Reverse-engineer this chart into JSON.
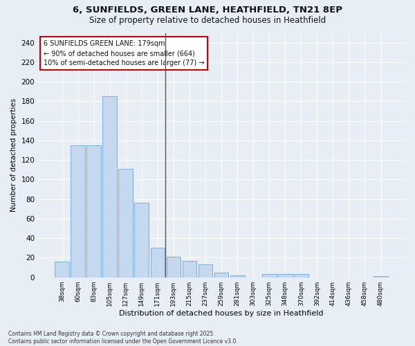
{
  "title_line1": "6, SUNFIELDS, GREEN LANE, HEATHFIELD, TN21 8EP",
  "title_line2": "Size of property relative to detached houses in Heathfield",
  "xlabel": "Distribution of detached houses by size in Heathfield",
  "ylabel": "Number of detached properties",
  "categories": [
    "38sqm",
    "60sqm",
    "83sqm",
    "105sqm",
    "127sqm",
    "149sqm",
    "171sqm",
    "193sqm",
    "215sqm",
    "237sqm",
    "259sqm",
    "281sqm",
    "303sqm",
    "325sqm",
    "348sqm",
    "370sqm",
    "392sqm",
    "414sqm",
    "436sqm",
    "458sqm",
    "480sqm"
  ],
  "values": [
    16,
    135,
    135,
    185,
    111,
    76,
    30,
    21,
    17,
    13,
    5,
    2,
    0,
    3,
    3,
    3,
    0,
    0,
    0,
    0,
    1
  ],
  "bar_color": "#c5d8f0",
  "bar_edge_color": "#7aafd4",
  "annotation_text_line1": "6 SUNFIELDS GREEN LANE: 179sqm",
  "annotation_text_line2": "← 90% of detached houses are smaller (664)",
  "annotation_text_line3": "10% of semi-detached houses are larger (77) →",
  "annotation_box_facecolor": "#ffffff",
  "annotation_box_edgecolor": "#cc0000",
  "vline_color": "#555555",
  "background_color": "#e8eef5",
  "grid_color": "#ffffff",
  "ylim": [
    0,
    250
  ],
  "yticks": [
    0,
    20,
    40,
    60,
    80,
    100,
    120,
    140,
    160,
    180,
    200,
    220,
    240
  ],
  "footer_line1": "Contains HM Land Registry data © Crown copyright and database right 2025.",
  "footer_line2": "Contains public sector information licensed under the Open Government Licence v3.0.",
  "title1_fontsize": 9.5,
  "title2_fontsize": 8.5,
  "ylabel_fontsize": 7.5,
  "xlabel_fontsize": 8,
  "ytick_fontsize": 7.5,
  "xtick_fontsize": 6.5,
  "annot_fontsize": 7,
  "footer_fontsize": 5.5,
  "vline_x_index": 6.5
}
